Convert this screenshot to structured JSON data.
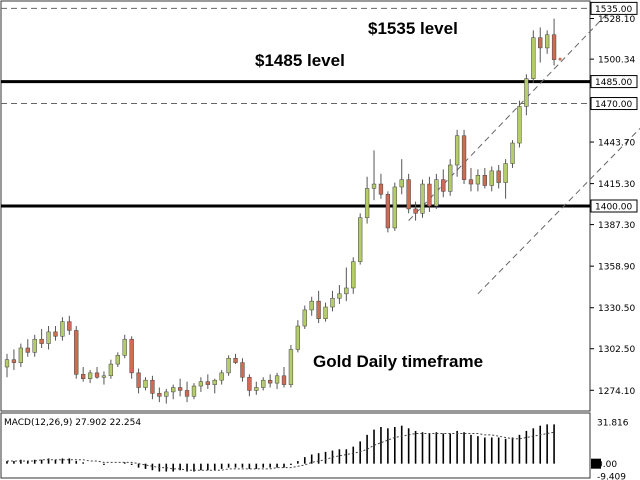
{
  "chart_data": [
    {
      "type": "candlestick",
      "title": "",
      "annotations": {
        "level_1535": "$1535 level",
        "level_1485": "$1485 level",
        "timeframe": "Gold Daily timeframe"
      },
      "y_ticks": [
        "1528.10",
        "1500.34",
        "1443.70",
        "1415.30",
        "1387.30",
        "1358.90",
        "1330.50",
        "1302.50",
        "1274.10"
      ],
      "ylim": [
        1262,
        1538
      ],
      "price_labels": [
        {
          "value": 1535.0,
          "text": "1535.00"
        },
        {
          "value": 1485.0,
          "text": "1485.00"
        },
        {
          "value": 1470.0,
          "text": "1470.00"
        },
        {
          "value": 1400.0,
          "text": "1400.00"
        }
      ],
      "horizontal_levels": [
        {
          "value": 1535.0,
          "style": "dashed"
        },
        {
          "value": 1485.0,
          "style": "solid-bold"
        },
        {
          "value": 1470.0,
          "style": "dashed"
        },
        {
          "value": 1400.0,
          "style": "solid-bold"
        }
      ],
      "channel_lines": [
        {
          "from": [
            58,
            1390
          ],
          "to": [
            88,
            1538
          ]
        },
        {
          "from": [
            68,
            1340
          ],
          "to": [
            97,
            1480
          ]
        }
      ],
      "current_price": 1500.34,
      "colors": {
        "up": "#b5cc6a",
        "down": "#cd6b55",
        "wick": "#555555",
        "line": "#000000",
        "dash": "#666666"
      },
      "candles": [
        [
          1290,
          1299,
          1283,
          1295
        ],
        [
          1295,
          1302,
          1288,
          1293
        ],
        [
          1293,
          1306,
          1290,
          1303
        ],
        [
          1303,
          1309,
          1297,
          1300
        ],
        [
          1300,
          1312,
          1297,
          1309
        ],
        [
          1309,
          1316,
          1303,
          1306
        ],
        [
          1306,
          1318,
          1302,
          1314
        ],
        [
          1314,
          1318,
          1308,
          1311
        ],
        [
          1311,
          1324,
          1308,
          1321
        ],
        [
          1321,
          1325,
          1312,
          1315
        ],
        [
          1315,
          1318,
          1282,
          1285
        ],
        [
          1285,
          1290,
          1280,
          1282
        ],
        [
          1282,
          1288,
          1279,
          1286
        ],
        [
          1286,
          1290,
          1282,
          1283
        ],
        [
          1283,
          1287,
          1278,
          1284
        ],
        [
          1284,
          1295,
          1282,
          1292
        ],
        [
          1292,
          1300,
          1290,
          1298
        ],
        [
          1298,
          1312,
          1296,
          1309
        ],
        [
          1309,
          1311,
          1282,
          1286
        ],
        [
          1286,
          1289,
          1272,
          1276
        ],
        [
          1276,
          1283,
          1274,
          1281
        ],
        [
          1281,
          1284,
          1268,
          1272
        ],
        [
          1272,
          1276,
          1266,
          1270
        ],
        [
          1270,
          1275,
          1265,
          1273
        ],
        [
          1273,
          1278,
          1268,
          1276
        ],
        [
          1276,
          1282,
          1270,
          1274
        ],
        [
          1274,
          1280,
          1266,
          1270
        ],
        [
          1270,
          1279,
          1268,
          1277
        ],
        [
          1277,
          1283,
          1273,
          1280
        ],
        [
          1280,
          1285,
          1275,
          1278
        ],
        [
          1278,
          1282,
          1272,
          1281
        ],
        [
          1281,
          1288,
          1278,
          1286
        ],
        [
          1286,
          1298,
          1284,
          1296
        ],
        [
          1296,
          1299,
          1292,
          1293
        ],
        [
          1293,
          1296,
          1280,
          1283
        ],
        [
          1283,
          1285,
          1270,
          1274
        ],
        [
          1274,
          1280,
          1271,
          1276
        ],
        [
          1276,
          1283,
          1274,
          1281
        ],
        [
          1281,
          1285,
          1276,
          1279
        ],
        [
          1279,
          1286,
          1275,
          1284
        ],
        [
          1284,
          1290,
          1276,
          1278
        ],
        [
          1278,
          1305,
          1276,
          1302
        ],
        [
          1302,
          1322,
          1300,
          1318
        ],
        [
          1318,
          1332,
          1316,
          1329
        ],
        [
          1329,
          1338,
          1325,
          1335
        ],
        [
          1335,
          1342,
          1320,
          1323
        ],
        [
          1323,
          1334,
          1321,
          1331
        ],
        [
          1331,
          1342,
          1328,
          1337
        ],
        [
          1337,
          1346,
          1333,
          1340
        ],
        [
          1340,
          1358,
          1335,
          1344
        ],
        [
          1344,
          1365,
          1340,
          1362
        ],
        [
          1362,
          1395,
          1360,
          1392
        ],
        [
          1392,
          1420,
          1388,
          1412
        ],
        [
          1412,
          1438,
          1404,
          1415
        ],
        [
          1415,
          1422,
          1405,
          1408
        ],
        [
          1408,
          1410,
          1382,
          1385
        ],
        [
          1385,
          1416,
          1383,
          1413
        ],
        [
          1413,
          1432,
          1408,
          1418
        ],
        [
          1418,
          1422,
          1395,
          1398
        ],
        [
          1398,
          1403,
          1390,
          1395
        ],
        [
          1395,
          1418,
          1392,
          1415
        ],
        [
          1415,
          1420,
          1396,
          1400
        ],
        [
          1400,
          1422,
          1398,
          1418
        ],
        [
          1418,
          1425,
          1406,
          1410
        ],
        [
          1410,
          1432,
          1407,
          1428
        ],
        [
          1428,
          1452,
          1420,
          1448
        ],
        [
          1448,
          1452,
          1415,
          1418
        ],
        [
          1418,
          1426,
          1410,
          1415
        ],
        [
          1415,
          1425,
          1410,
          1421
        ],
        [
          1421,
          1426,
          1412,
          1414
        ],
        [
          1414,
          1427,
          1410,
          1424
        ],
        [
          1424,
          1428,
          1412,
          1416
        ],
        [
          1416,
          1432,
          1405,
          1429
        ],
        [
          1429,
          1445,
          1426,
          1443
        ],
        [
          1443,
          1472,
          1440,
          1468
        ],
        [
          1468,
          1490,
          1462,
          1487
        ],
        [
          1487,
          1520,
          1484,
          1515
        ],
        [
          1515,
          1522,
          1498,
          1508
        ],
        [
          1508,
          1520,
          1504,
          1517
        ],
        [
          1517,
          1528,
          1496,
          1500
        ]
      ],
      "macd": {
        "label": "MACD(12,26,9) 27.902 22.254",
        "ticks": [
          "31.816",
          "0.00",
          "-9.409"
        ],
        "histogram": [
          2,
          2,
          3,
          2,
          3,
          3,
          4,
          3,
          4,
          4,
          2,
          1,
          0,
          0,
          -1,
          0,
          0,
          1,
          -1,
          -3,
          -4,
          -5,
          -6,
          -6,
          -6,
          -5,
          -6,
          -6,
          -5,
          -5,
          -5,
          -4,
          -3,
          -3,
          -3,
          -4,
          -4,
          -3,
          -3,
          -3,
          -3,
          -1,
          2,
          5,
          7,
          8,
          9,
          10,
          11,
          11,
          13,
          17,
          22,
          26,
          28,
          27,
          28,
          29,
          27,
          25,
          24,
          23,
          24,
          23,
          23,
          25,
          24,
          22,
          21,
          20,
          20,
          20,
          19,
          20,
          22,
          25,
          27,
          29,
          30,
          30
        ],
        "signal": [
          2,
          2,
          2,
          2,
          2,
          3,
          3,
          3,
          3,
          3,
          3,
          3,
          2,
          2,
          1,
          1,
          1,
          1,
          1,
          0,
          -1,
          -2,
          -3,
          -3,
          -4,
          -4,
          -5,
          -5,
          -5,
          -5,
          -5,
          -5,
          -4,
          -4,
          -4,
          -4,
          -4,
          -4,
          -4,
          -3,
          -3,
          -3,
          -2,
          -1,
          1,
          2,
          3,
          5,
          6,
          7,
          8,
          9,
          11,
          14,
          16,
          18,
          20,
          21,
          22,
          23,
          23,
          23,
          23,
          23,
          23,
          23,
          23,
          23,
          23,
          22,
          22,
          21,
          20,
          19,
          19,
          20,
          21,
          22,
          23,
          24
        ]
      }
    }
  ]
}
